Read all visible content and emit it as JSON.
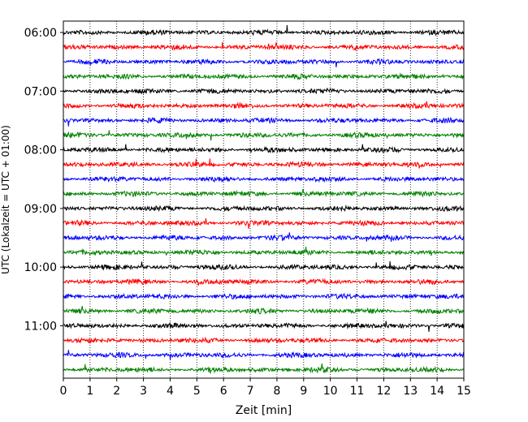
{
  "chart_data": {
    "type": "line",
    "title": "",
    "xlabel": "Zeit  [min]",
    "ylabel": "UTC (Lokalzeit = UTC + 01:00)",
    "xlim": [
      0,
      15
    ],
    "x_ticks": [
      "0",
      "1",
      "2",
      "3",
      "4",
      "5",
      "6",
      "7",
      "8",
      "9",
      "10",
      "11",
      "12",
      "13",
      "14",
      "15"
    ],
    "y_ticks": [
      "06:00",
      "07:00",
      "08:00",
      "09:00",
      "10:00",
      "11:00"
    ],
    "grid": "vertical dotted",
    "row_interval_minutes": 15,
    "colors": [
      "#000000",
      "#ff0000",
      "#0000ff",
      "#008000"
    ],
    "rows": [
      {
        "start": "06:00",
        "color": "#000000"
      },
      {
        "start": "06:15",
        "color": "#ff0000"
      },
      {
        "start": "06:30",
        "color": "#0000ff"
      },
      {
        "start": "06:45",
        "color": "#008000"
      },
      {
        "start": "07:00",
        "color": "#000000"
      },
      {
        "start": "07:15",
        "color": "#ff0000"
      },
      {
        "start": "07:30",
        "color": "#0000ff"
      },
      {
        "start": "07:45",
        "color": "#008000"
      },
      {
        "start": "08:00",
        "color": "#000000"
      },
      {
        "start": "08:15",
        "color": "#ff0000"
      },
      {
        "start": "08:30",
        "color": "#0000ff"
      },
      {
        "start": "08:45",
        "color": "#008000"
      },
      {
        "start": "09:00",
        "color": "#000000"
      },
      {
        "start": "09:15",
        "color": "#ff0000"
      },
      {
        "start": "09:30",
        "color": "#0000ff"
      },
      {
        "start": "09:45",
        "color": "#008000"
      },
      {
        "start": "10:00",
        "color": "#000000"
      },
      {
        "start": "10:15",
        "color": "#ff0000"
      },
      {
        "start": "10:30",
        "color": "#0000ff"
      },
      {
        "start": "10:45",
        "color": "#008000"
      },
      {
        "start": "11:00",
        "color": "#000000"
      },
      {
        "start": "11:15",
        "color": "#ff0000"
      },
      {
        "start": "11:30",
        "color": "#0000ff"
      },
      {
        "start": "11:45",
        "color": "#008000"
      }
    ]
  }
}
